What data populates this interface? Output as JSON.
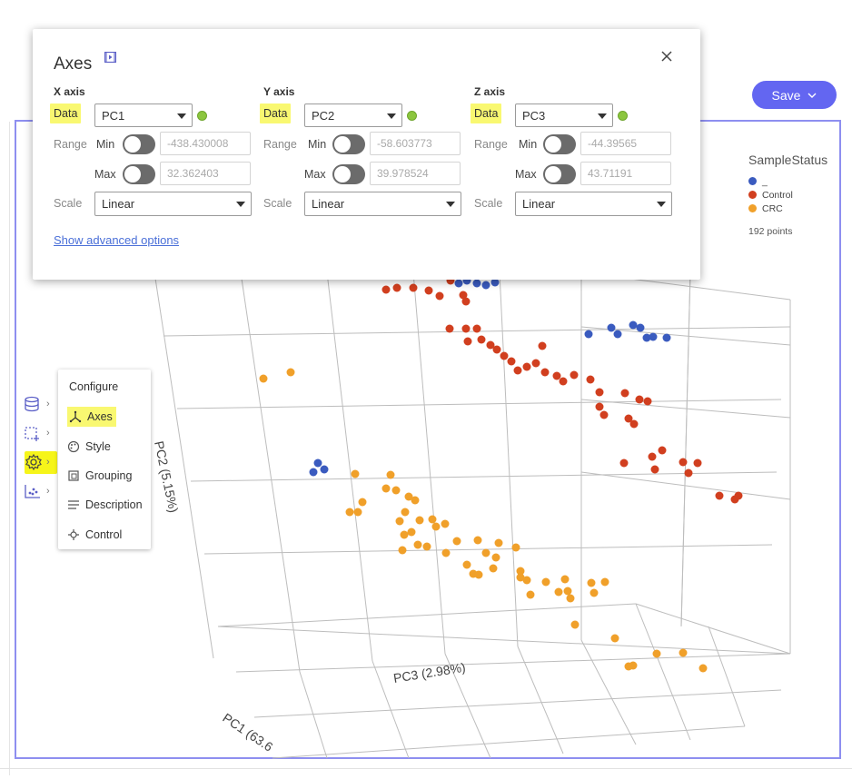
{
  "save_button": {
    "label": "Save"
  },
  "legend": {
    "title": "SampleStatus",
    "items": [
      {
        "label": "_",
        "color": "#3a5bbf"
      },
      {
        "label": "Control",
        "color": "#d13f1f"
      },
      {
        "label": "CRC",
        "color": "#f0a02a"
      }
    ],
    "count": "192 points"
  },
  "axes_popup": {
    "title": "Axes",
    "axes": [
      {
        "title": "X axis",
        "data_label": "Data",
        "data_value": "PC1",
        "range_label": "Range",
        "min_label": "Min",
        "min_value": "-438.430008",
        "max_label": "Max",
        "max_value": "32.362403",
        "scale_label": "Scale",
        "scale_value": "Linear"
      },
      {
        "title": "Y axis",
        "data_label": "Data",
        "data_value": "PC2",
        "range_label": "Range",
        "min_label": "Min",
        "min_value": "-58.603773",
        "max_label": "Max",
        "max_value": "39.978524",
        "scale_label": "Scale",
        "scale_value": "Linear"
      },
      {
        "title": "Z axis",
        "data_label": "Data",
        "data_value": "PC3",
        "range_label": "Range",
        "min_label": "Min",
        "min_value": "-44.39565",
        "max_label": "Max",
        "max_value": "43.71191",
        "scale_label": "Scale",
        "scale_value": "Linear"
      }
    ],
    "advanced_link": "Show advanced options"
  },
  "config_menu": {
    "title": "Configure",
    "items": [
      "Axes",
      "Style",
      "Grouping",
      "Description",
      "Control"
    ]
  },
  "plot": {
    "axis_labels": {
      "pc1": "PC1 (63.6",
      "pc2": "PC2 (5.15%)",
      "pc3": "PC3 (2.98%)"
    }
  }
}
